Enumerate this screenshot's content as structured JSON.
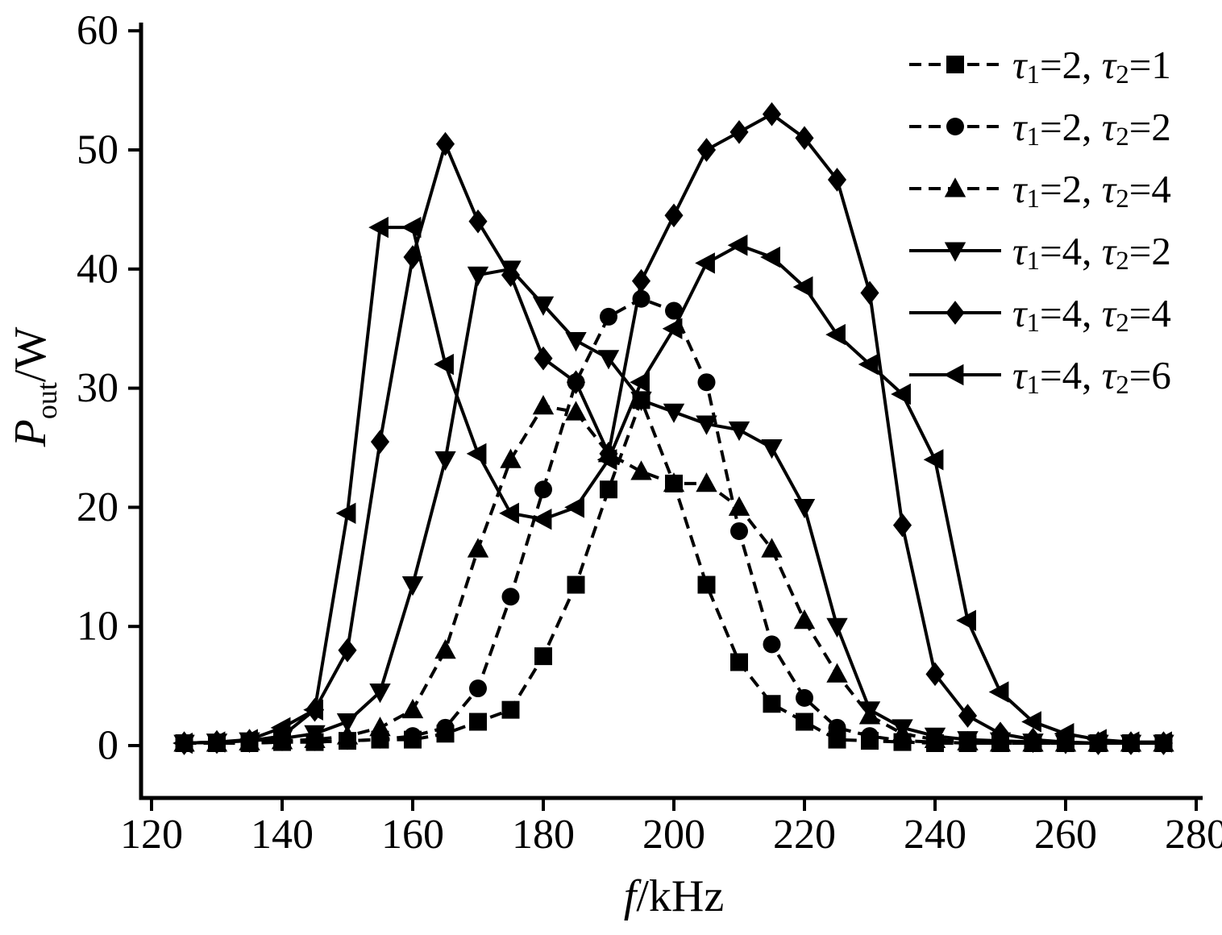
{
  "figure": {
    "background": "#ffffff",
    "ink": "#000000"
  },
  "chart_data": {
    "type": "line",
    "title": "",
    "xlabel": {
      "italic": "f",
      "rest": "/kHz"
    },
    "ylabel": {
      "italic": "P",
      "sub": "out",
      "rest": "/W"
    },
    "xlim": [
      120,
      280
    ],
    "ylim": [
      0,
      60
    ],
    "xticks": [
      120,
      140,
      160,
      180,
      200,
      220,
      240,
      260,
      280
    ],
    "yticks": [
      0,
      10,
      20,
      30,
      40,
      50,
      60
    ],
    "grid": false,
    "legend_position": "top-right",
    "x": [
      125,
      130,
      135,
      140,
      145,
      150,
      155,
      160,
      165,
      170,
      175,
      180,
      185,
      190,
      195,
      200,
      205,
      210,
      215,
      220,
      225,
      230,
      235,
      240,
      245,
      250,
      255,
      260,
      265,
      270,
      275
    ],
    "series": [
      {
        "name": "τ1=2, τ2=1",
        "marker": "square",
        "line": "dashed",
        "values": [
          0.2,
          0.2,
          0.2,
          0.3,
          0.3,
          0.4,
          0.5,
          0.5,
          1.0,
          2.0,
          3.0,
          7.5,
          13.5,
          21.5,
          29.0,
          22.0,
          13.5,
          7.0,
          3.5,
          2.0,
          0.5,
          0.4,
          0.3,
          0.2,
          0.2,
          0.2,
          0.2,
          0.2,
          0.2,
          0.2,
          0.2
        ]
      },
      {
        "name": "τ1=2, τ2=2",
        "marker": "circle",
        "line": "dashed",
        "values": [
          0.2,
          0.2,
          0.2,
          0.3,
          0.3,
          0.4,
          0.5,
          0.8,
          1.5,
          4.8,
          12.5,
          21.5,
          30.5,
          36.0,
          37.5,
          36.5,
          30.5,
          18.0,
          8.5,
          4.0,
          1.5,
          0.8,
          0.4,
          0.3,
          0.2,
          0.2,
          0.2,
          0.2,
          0.2,
          0.2,
          0.2
        ]
      },
      {
        "name": "τ1=2, τ2=4",
        "marker": "triangle-up",
        "line": "dashed",
        "values": [
          0.2,
          0.2,
          0.3,
          0.4,
          0.5,
          0.8,
          1.5,
          3.0,
          8.0,
          16.5,
          24.0,
          28.5,
          28.0,
          24.5,
          23.0,
          22.0,
          22.0,
          20.0,
          16.5,
          10.5,
          6.0,
          2.5,
          1.0,
          0.5,
          0.3,
          0.2,
          0.2,
          0.2,
          0.2,
          0.2,
          0.2
        ]
      },
      {
        "name": "τ1=4, τ2=2",
        "marker": "triangle-down",
        "line": "solid",
        "values": [
          0.2,
          0.3,
          0.4,
          0.6,
          1.0,
          2.0,
          4.5,
          13.5,
          24.0,
          39.5,
          40.0,
          37.0,
          34.0,
          32.5,
          29.0,
          28.0,
          27.0,
          26.5,
          25.0,
          20.0,
          10.0,
          3.0,
          1.5,
          0.8,
          0.5,
          0.4,
          0.3,
          0.2,
          0.2,
          0.2,
          0.2
        ]
      },
      {
        "name": "τ1=4, τ2=4",
        "marker": "diamond",
        "line": "solid",
        "values": [
          0.2,
          0.3,
          0.4,
          0.8,
          3.0,
          8.0,
          25.5,
          41.0,
          50.5,
          44.0,
          39.5,
          32.5,
          30.5,
          24.5,
          39.0,
          44.5,
          50.0,
          51.5,
          53.0,
          51.0,
          47.5,
          38.0,
          18.5,
          6.0,
          2.5,
          1.0,
          0.5,
          0.3,
          0.2,
          0.2,
          0.2
        ]
      },
      {
        "name": "τ1=4, τ2=6",
        "marker": "triangle-left",
        "line": "solid",
        "values": [
          0.2,
          0.3,
          0.5,
          1.5,
          3.0,
          19.5,
          43.5,
          43.5,
          32.0,
          24.5,
          19.5,
          19.0,
          20.0,
          24.0,
          30.5,
          35.0,
          40.5,
          42.0,
          41.0,
          38.5,
          34.5,
          32.0,
          29.5,
          24.0,
          10.5,
          4.5,
          2.0,
          1.0,
          0.5,
          0.3,
          0.3
        ]
      }
    ]
  }
}
